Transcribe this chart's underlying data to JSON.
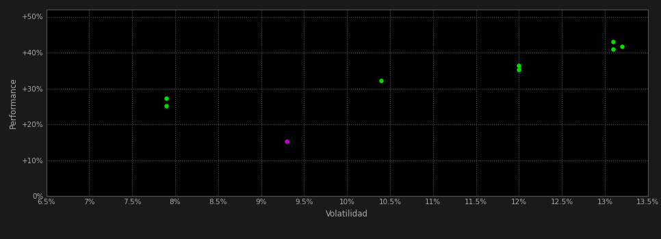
{
  "background_color": "#1a1a1a",
  "plot_bg_color": "#000000",
  "grid_color": "#555555",
  "text_color": "#aaaaaa",
  "xlabel": "Volatilidad",
  "ylabel": "Performance",
  "xlim": [
    0.065,
    0.135
  ],
  "ylim": [
    0.0,
    0.52
  ],
  "xticks": [
    0.065,
    0.07,
    0.075,
    0.08,
    0.085,
    0.09,
    0.095,
    0.1,
    0.105,
    0.11,
    0.115,
    0.12,
    0.125,
    0.13,
    0.135
  ],
  "yticks": [
    0.0,
    0.1,
    0.2,
    0.3,
    0.4,
    0.5
  ],
  "ytick_labels": [
    "0%",
    "+10%",
    "+20%",
    "+30%",
    "+40%",
    "+50%"
  ],
  "xtick_labels": [
    "6.5%",
    "7%",
    "7.5%",
    "8%",
    "8.5%",
    "9%",
    "9.5%",
    "10%",
    "10.5%",
    "11%",
    "11.5%",
    "12%",
    "12.5%",
    "13%",
    "13.5%"
  ],
  "points_green": [
    [
      0.079,
      0.272
    ],
    [
      0.079,
      0.252
    ],
    [
      0.104,
      0.322
    ],
    [
      0.12,
      0.353
    ],
    [
      0.12,
      0.363
    ],
    [
      0.131,
      0.43
    ],
    [
      0.132,
      0.418
    ],
    [
      0.131,
      0.41
    ]
  ],
  "points_magenta": [
    [
      0.093,
      0.152
    ]
  ],
  "green_color": "#00dd00",
  "magenta_color": "#cc00cc",
  "marker_size": 22
}
